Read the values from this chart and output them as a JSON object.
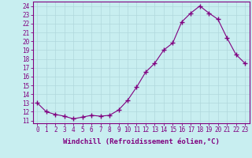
{
  "x": [
    0,
    1,
    2,
    3,
    4,
    5,
    6,
    7,
    8,
    9,
    10,
    11,
    12,
    13,
    14,
    15,
    16,
    17,
    18,
    19,
    20,
    21,
    22,
    23
  ],
  "y": [
    13,
    12,
    11.7,
    11.5,
    11.2,
    11.4,
    11.6,
    11.5,
    11.6,
    12.2,
    13.3,
    14.8,
    16.5,
    17.5,
    19.0,
    19.8,
    22.2,
    23.2,
    24.0,
    23.2,
    22.5,
    20.4,
    18.5,
    17.5
  ],
  "line_color": "#800080",
  "marker": "+",
  "marker_size": 4,
  "bg_color": "#c8eef0",
  "grid_color": "#b0d8dc",
  "xlabel": "Windchill (Refroidissement éolien,°C)",
  "ylabel_ticks": [
    11,
    12,
    13,
    14,
    15,
    16,
    17,
    18,
    19,
    20,
    21,
    22,
    23,
    24
  ],
  "xlim": [
    -0.5,
    23.5
  ],
  "ylim": [
    10.7,
    24.5
  ],
  "tick_fontsize": 5.5,
  "label_fontsize": 6.5
}
